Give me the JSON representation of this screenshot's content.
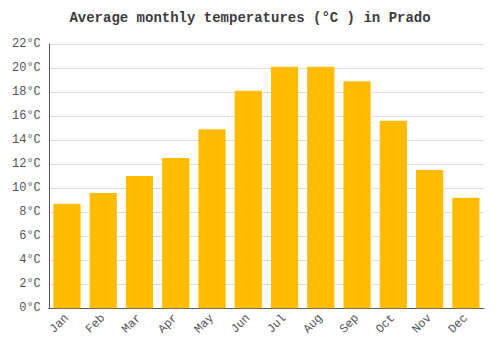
{
  "chart_data": {
    "type": "bar",
    "title": "Average monthly temperatures (°C ) in Prado",
    "categories": [
      "Jan",
      "Feb",
      "Mar",
      "Apr",
      "May",
      "Jun",
      "Jul",
      "Aug",
      "Sep",
      "Oct",
      "Nov",
      "Dec"
    ],
    "values": [
      8.7,
      9.6,
      11.0,
      12.5,
      14.9,
      18.1,
      20.1,
      20.1,
      18.9,
      15.6,
      11.5,
      9.2
    ],
    "color": "#FFBB00",
    "ylim": [
      0,
      22
    ],
    "yticks": [
      {
        "value": 0,
        "label": "0°C"
      },
      {
        "value": 2,
        "label": "2°C"
      },
      {
        "value": 4,
        "label": "4°C"
      },
      {
        "value": 6,
        "label": "6°C"
      },
      {
        "value": 8,
        "label": "8°C"
      },
      {
        "value": 10,
        "label": "10°C"
      },
      {
        "value": 12,
        "label": "12°C"
      },
      {
        "value": 14,
        "label": "14°C"
      },
      {
        "value": 16,
        "label": "16°C"
      },
      {
        "value": 18,
        "label": "18°C"
      },
      {
        "value": 20,
        "label": "20°C"
      },
      {
        "value": 22,
        "label": "22°C"
      }
    ],
    "grid": true
  }
}
